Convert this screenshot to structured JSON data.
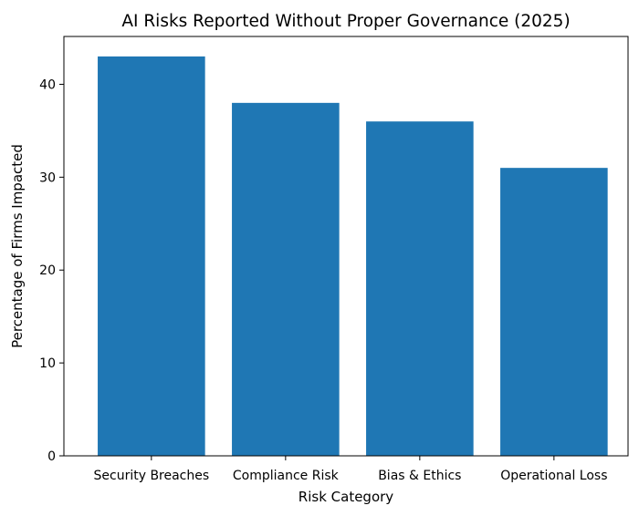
{
  "chart_data": {
    "type": "bar",
    "title": "AI Risks Reported Without Proper Governance (2025)",
    "xlabel": "Risk Category",
    "ylabel": "Percentage of Firms Impacted",
    "categories": [
      "Security Breaches",
      "Compliance Risk",
      "Bias & Ethics",
      "Operational Loss"
    ],
    "values": [
      43,
      38,
      36,
      31
    ],
    "ylim": [
      0,
      45.15
    ],
    "yticks": [
      0,
      10,
      20,
      30,
      40
    ],
    "grid": false,
    "legend": "none",
    "bar_color": "#1f77b4"
  }
}
